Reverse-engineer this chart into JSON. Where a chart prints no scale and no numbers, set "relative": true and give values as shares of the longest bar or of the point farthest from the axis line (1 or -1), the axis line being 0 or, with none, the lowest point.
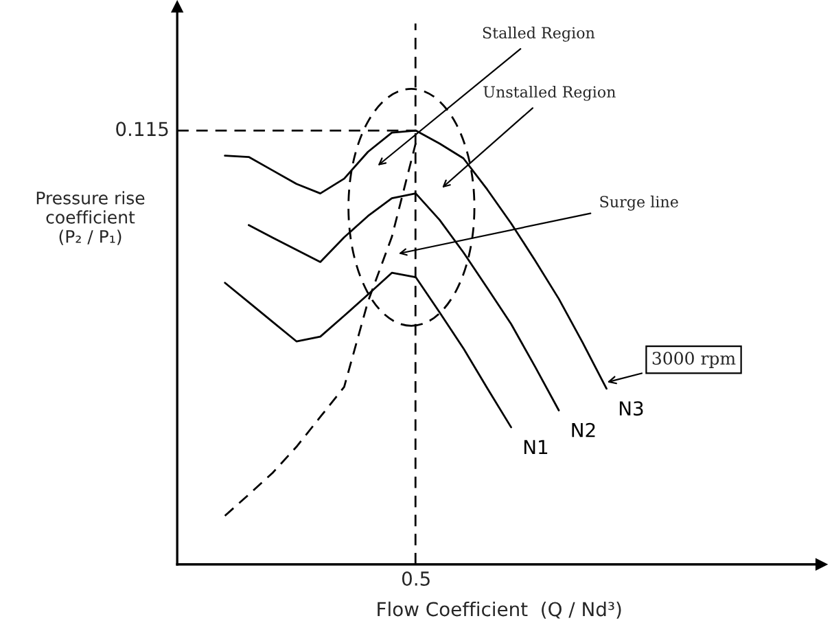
{
  "chart_data": {
    "type": "line",
    "relative": true,
    "xlabel": "Flow Coefficient  (Q / Nd³)",
    "ylabel": "Pressure rise\ncoefficient\n(P₂ / P₁)",
    "marker": "none",
    "categories": [
      null,
      null,
      null,
      null,
      null,
      null,
      null,
      null,
      null,
      null,
      null,
      null,
      null,
      null,
      null,
      null,
      null,
      null,
      null
    ],
    "series": [
      {
        "name": "N1",
        "color": "#000000",
        "line_style": "solid",
        "values": [
          null,
          0.649,
          0.604,
          0.559,
          0.514,
          0.525,
          0.573,
          0.622,
          0.672,
          0.662,
          0.581,
          0.498,
          0.406,
          0.316,
          null,
          null,
          null,
          null,
          null
        ]
      },
      {
        "name": "N2",
        "color": "#000000",
        "line_style": "solid",
        "values": [
          null,
          null,
          0.782,
          0.753,
          0.725,
          0.697,
          0.754,
          0.803,
          0.844,
          0.855,
          0.794,
          0.719,
          0.637,
          0.554,
          0.456,
          0.355,
          null,
          null,
          null
        ]
      },
      {
        "name": "N3",
        "color": "#000000",
        "line_style": "solid",
        "values": [
          null,
          0.942,
          0.939,
          0.908,
          0.877,
          0.855,
          0.889,
          0.951,
          0.995,
          1.0,
          0.97,
          0.936,
          0.864,
          0.786,
          0.701,
          0.612,
          0.511,
          0.405,
          null
        ]
      },
      {
        "color": "#000000",
        "line_style": "dashed",
        "values": [
          null,
          0.112,
          0.161,
          0.211,
          0.271,
          0.34,
          0.409,
          0.606,
          0.755,
          0.971,
          null,
          null,
          null,
          null,
          null,
          null,
          null,
          null,
          null
        ]
      }
    ],
    "ref_lines": [
      {
        "axis": "y",
        "value": 1.0,
        "line_style": "dashed",
        "color": "#000000"
      }
    ],
    "annotations": [
      "0.115",
      "0.5",
      "Stalled Region",
      "Unstalled Region",
      "Surge line",
      "3000 rpm"
    ]
  }
}
